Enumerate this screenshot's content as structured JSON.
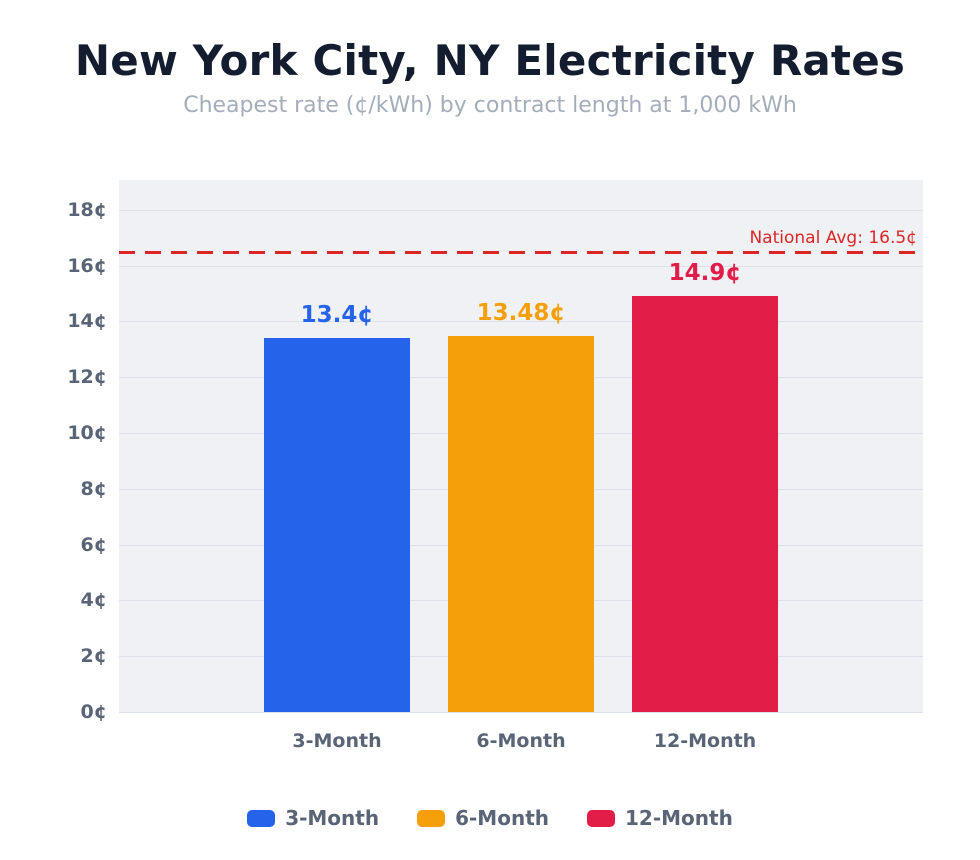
{
  "header": {
    "title": "New York City, NY Electricity Rates",
    "subtitle": "Cheapest rate (¢/kWh) by contract length at 1,000 kWh"
  },
  "colors": {
    "background": "#ffffff",
    "plot_background": "#eff1f5",
    "gridline": "#dde2ea",
    "title_text": "#141c2f",
    "subtitle_text": "#a4adba",
    "axis_text": "#5a6477",
    "bar_blue": "#2563eb",
    "bar_orange": "#f5a00b",
    "bar_red": "#e11d48",
    "reference_red": "#dc2626"
  },
  "chart_data": {
    "type": "bar",
    "title": "New York City, NY Electricity Rates",
    "subtitle": "Cheapest rate (¢/kWh) by contract length at 1,000 kWh",
    "categories": [
      "3-Month",
      "6-Month",
      "12-Month"
    ],
    "values": [
      13.4,
      13.48,
      14.9
    ],
    "value_labels": [
      "13.4¢",
      "13.48¢",
      "14.9¢"
    ],
    "bar_colors": [
      "#2563eb",
      "#f5a00b",
      "#e11d48"
    ],
    "xlabel": "",
    "ylabel": "",
    "ylim": [
      0,
      19.07
    ],
    "ytick_values": [
      0,
      2,
      4,
      6,
      8,
      10,
      12,
      14,
      16,
      18
    ],
    "ytick_labels": [
      "0¢",
      "2¢",
      "4¢",
      "6¢",
      "8¢",
      "10¢",
      "12¢",
      "14¢",
      "16¢",
      "18¢"
    ],
    "grid": true,
    "reference_line": {
      "value": 16.5,
      "label": "National Avg: 16.5¢",
      "color": "#dc2626",
      "style": "dashed"
    },
    "legend_position": "bottom",
    "legend": [
      {
        "label": "3-Month",
        "color": "#2563eb"
      },
      {
        "label": "6-Month",
        "color": "#f5a00b"
      },
      {
        "label": "12-Month",
        "color": "#e11d48"
      }
    ]
  }
}
